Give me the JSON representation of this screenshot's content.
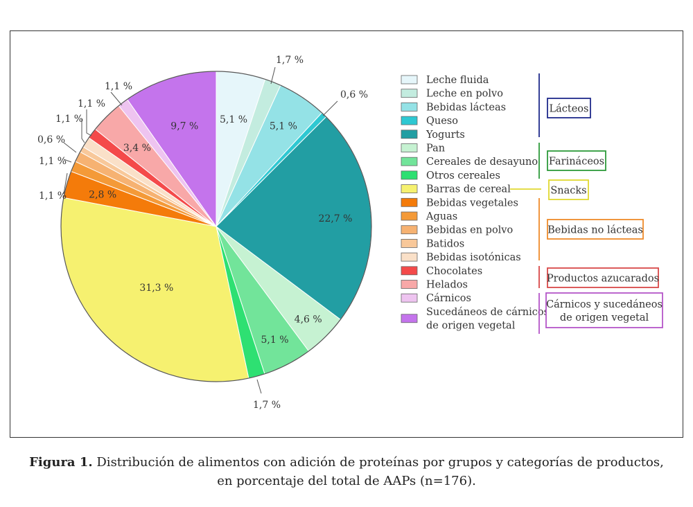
{
  "chart_data": {
    "type": "pie",
    "title": "",
    "unit": "%",
    "slices": [
      {
        "category": "Leche fluida",
        "value": 5.1,
        "label": "5,1 %",
        "color": "#e6f6fa",
        "group": "Lácteos"
      },
      {
        "category": "Leche en polvo",
        "value": 1.7,
        "label": "1,7 %",
        "color": "#c3ecdf",
        "group": "Lácteos"
      },
      {
        "category": "Bebidas lácteas",
        "value": 5.1,
        "label": "5,1 %",
        "color": "#94e2e6",
        "group": "Lácteos"
      },
      {
        "category": "Queso",
        "value": 0.6,
        "label": "0,6 %",
        "color": "#2ec8d2",
        "group": "Lácteos"
      },
      {
        "category": "Yogurts",
        "value": 22.7,
        "label": "22,7 %",
        "color": "#229ea3",
        "group": "Lácteos"
      },
      {
        "category": "Pan",
        "value": 4.6,
        "label": "4,6 %",
        "color": "#c6f2d2",
        "group": "Farináceos"
      },
      {
        "category": "Cereales de desayuno",
        "value": 5.1,
        "label": "5,1 %",
        "color": "#72e49a",
        "group": "Farináceos"
      },
      {
        "category": "Otros cereales",
        "value": 1.7,
        "label": "1,7 %",
        "color": "#2ee072",
        "group": "Farináceos"
      },
      {
        "category": "Barras de cereal",
        "value": 31.3,
        "label": "31,3 %",
        "color": "#f6f170",
        "group": "Snacks"
      },
      {
        "category": "Bebidas vegetales",
        "value": 2.8,
        "label": "2,8 %",
        "color": "#f47b0a",
        "group": "Bebidas no lácteas"
      },
      {
        "category": "Aguas",
        "value": 1.1,
        "label": "1,1 %",
        "color": "#f49a38",
        "group": "Bebidas no lácteas"
      },
      {
        "category": "Bebidas en polvo",
        "value": 1.1,
        "label": "1,1 %",
        "color": "#f6b272",
        "group": "Bebidas no lácteas"
      },
      {
        "category": "Batidos",
        "value": 0.6,
        "label": "0,6 %",
        "color": "#f8c89a",
        "group": "Bebidas no lácteas"
      },
      {
        "category": "Bebidas isotónicas",
        "value": 1.1,
        "label": "1,1 %",
        "color": "#fae0c8",
        "group": "Bebidas no lácteas"
      },
      {
        "category": "Chocolates",
        "value": 1.1,
        "label": "1,1 %",
        "color": "#f44a4a",
        "group": "Productos azucarados"
      },
      {
        "category": "Helados",
        "value": 3.4,
        "label": "3,4 %",
        "color": "#f8a8a8",
        "group": "Productos azucarados"
      },
      {
        "category": "Cárnicos",
        "value": 1.1,
        "label": "1,1 %",
        "color": "#eec4f0",
        "group": "Cárnicos y sucedáneos de origen vegetal"
      },
      {
        "category": "Sucedáneos de cárnicos de origen vegetal",
        "value": 9.7,
        "label": "9,7 %",
        "color": "#c474ec",
        "group": "Cárnicos y sucedáneos de origen vegetal"
      }
    ],
    "legend_lines": [
      [
        "Leche fluida"
      ],
      [
        "Leche en polvo"
      ],
      [
        "Bebidas lácteas"
      ],
      [
        "Queso"
      ],
      [
        "Yogurts"
      ],
      [
        "Pan"
      ],
      [
        "Cereales de desayuno"
      ],
      [
        "Otros cereales"
      ],
      [
        "Barras de cereal"
      ],
      [
        "Bebidas vegetales"
      ],
      [
        "Aguas"
      ],
      [
        "Bebidas en polvo"
      ],
      [
        "Batidos"
      ],
      [
        "Bebidas isotónicas"
      ],
      [
        "Chocolates"
      ],
      [
        "Helados"
      ],
      [
        "Cárnicos"
      ],
      [
        "Sucedáneos de cárnicos",
        "de origen vegetal"
      ]
    ],
    "groups": [
      {
        "name": "Lácteos",
        "lines": [
          "Lácteos"
        ],
        "color": "#1f2a8a"
      },
      {
        "name": "Farináceos",
        "lines": [
          "Farináceos"
        ],
        "color": "#2e9a3a"
      },
      {
        "name": "Snacks",
        "lines": [
          "Snacks"
        ],
        "color": "#e0d830"
      },
      {
        "name": "Bebidas no lácteas",
        "lines": [
          "Bebidas no lácteas"
        ],
        "color": "#ef8a2a"
      },
      {
        "name": "Productos azucarados",
        "lines": [
          "Productos azucarados"
        ],
        "color": "#d94848"
      },
      {
        "name": "Cárnicos y sucedáneos de origen vegetal",
        "lines": [
          "Cárnicos y sucedáneos",
          "de origen vegetal"
        ],
        "color": "#b455c8"
      }
    ]
  },
  "caption": {
    "label": "Figura 1.",
    "text_line1": " Distribución de alimentos con adición de proteínas por grupos y categorías de productos,",
    "text_line2": "en porcentaje del total de AAPs (n=176)."
  }
}
